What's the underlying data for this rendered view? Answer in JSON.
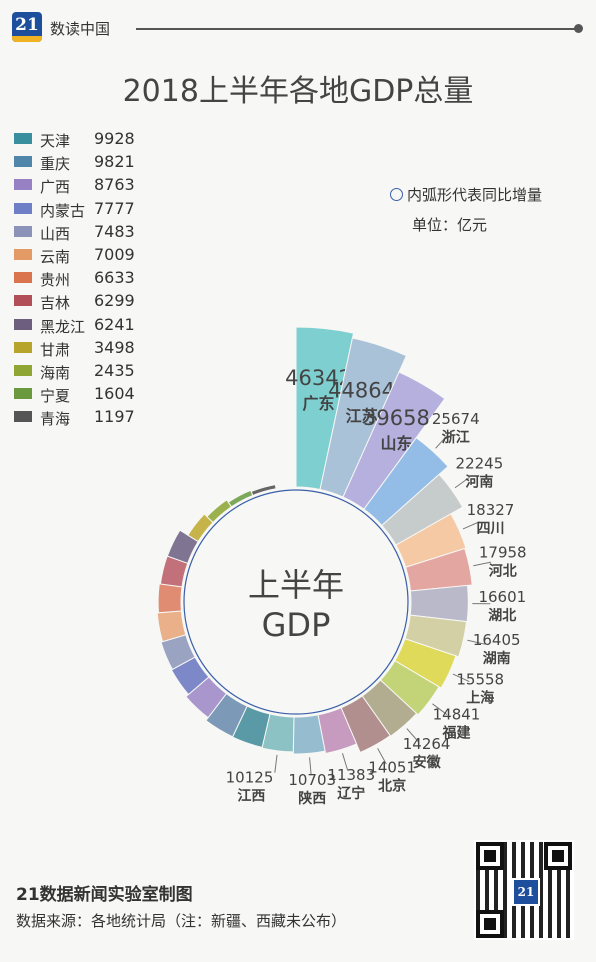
{
  "header": {
    "logo_text": "21",
    "label": "数读中国"
  },
  "title": "2018上半年各地GDP总量",
  "note": "内弧形代表同比增量",
  "unit": "单位：亿元",
  "center_label_line1": "上半年",
  "center_label_line2": "GDP",
  "footer": {
    "brand": "21数据新闻实验室制图",
    "source": "数据来源：各地统计局（注：新疆、西藏未公布）",
    "qr_logo": "21"
  },
  "chart_data": {
    "type": "pie",
    "variant": "nightingale-rose",
    "title": "2018上半年各地GDP总量",
    "unit": "亿元",
    "legend_position": "top-left",
    "categories": [
      "广东",
      "江苏",
      "山东",
      "浙江",
      "河南",
      "四川",
      "河北",
      "湖北",
      "湖南",
      "上海",
      "福建",
      "安徽",
      "北京",
      "辽宁",
      "陕西",
      "江西",
      "天津",
      "重庆",
      "广西",
      "内蒙古",
      "山西",
      "云南",
      "贵州",
      "吉林",
      "黑龙江",
      "甘肃",
      "海南",
      "宁夏",
      "青海"
    ],
    "values": [
      46342,
      44864,
      39658,
      25674,
      22245,
      18327,
      17958,
      16601,
      16405,
      15558,
      14841,
      14264,
      14051,
      11383,
      10703,
      10125,
      9928,
      9821,
      8763,
      7777,
      7483,
      7009,
      6633,
      6299,
      6241,
      3498,
      2435,
      1604,
      1197
    ],
    "colors": [
      "#7ecfd0",
      "#a9c2d8",
      "#b5b0de",
      "#93bde6",
      "#c6cbcc",
      "#f5c9a4",
      "#e4a6a1",
      "#b9b9c9",
      "#d4d0a6",
      "#e0da5a",
      "#c3d478",
      "#b2ad91",
      "#b08f8e",
      "#c79ac0",
      "#96bcd0",
      "#8cc2c3",
      "#5a9aa6",
      "#7c9ab8",
      "#a896cc",
      "#7d88c8",
      "#9aa4c2",
      "#e9b08a",
      "#df8c72",
      "#c2707a",
      "#7f7491",
      "#c6b44a",
      "#9bb14e",
      "#7ea859",
      "#666666"
    ]
  },
  "legend": [
    {
      "name": "天津",
      "value": "9928",
      "color": "#3a8f9e"
    },
    {
      "name": "重庆",
      "value": "9821",
      "color": "#4f86aa"
    },
    {
      "name": "广西",
      "value": "8763",
      "color": "#9880c4"
    },
    {
      "name": "内蒙古",
      "value": "7777",
      "color": "#6f7fc7"
    },
    {
      "name": "山西",
      "value": "7483",
      "color": "#8b93b8"
    },
    {
      "name": "云南",
      "value": "7009",
      "color": "#e39a64"
    },
    {
      "name": "贵州",
      "value": "6633",
      "color": "#d9744f"
    },
    {
      "name": "吉林",
      "value": "6299",
      "color": "#b24e58"
    },
    {
      "name": "黑龙江",
      "value": "6241",
      "color": "#6d5e80"
    },
    {
      "name": "甘肃",
      "value": "3498",
      "color": "#b7a42a"
    },
    {
      "name": "海南",
      "value": "2435",
      "color": "#8fa534"
    },
    {
      "name": "宁夏",
      "value": "1604",
      "color": "#6a9a3d"
    },
    {
      "name": "青海",
      "value": "1197",
      "color": "#555555"
    }
  ]
}
